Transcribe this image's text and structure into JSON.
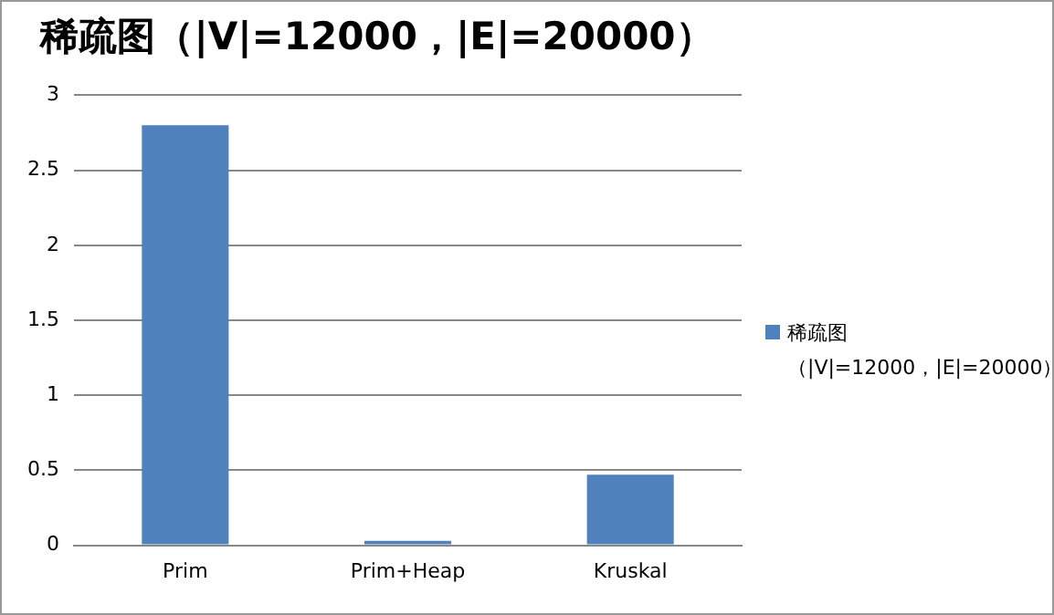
{
  "chart_data": {
    "type": "bar",
    "title": "稀疏图（|V|=12000，|E|=20000）",
    "categories": [
      "Prim",
      "Prim+Heap",
      "Kruskal"
    ],
    "series": [
      {
        "name": "稀疏图（|V|=12000，|E|=20000）",
        "color": "#4f81bd",
        "values": [
          2.8,
          0.03,
          0.47
        ]
      }
    ],
    "ylim": [
      0,
      3
    ],
    "yticks": [
      0,
      0.5,
      1,
      1.5,
      2,
      2.5,
      3
    ],
    "grid": "y",
    "legend": "right"
  }
}
